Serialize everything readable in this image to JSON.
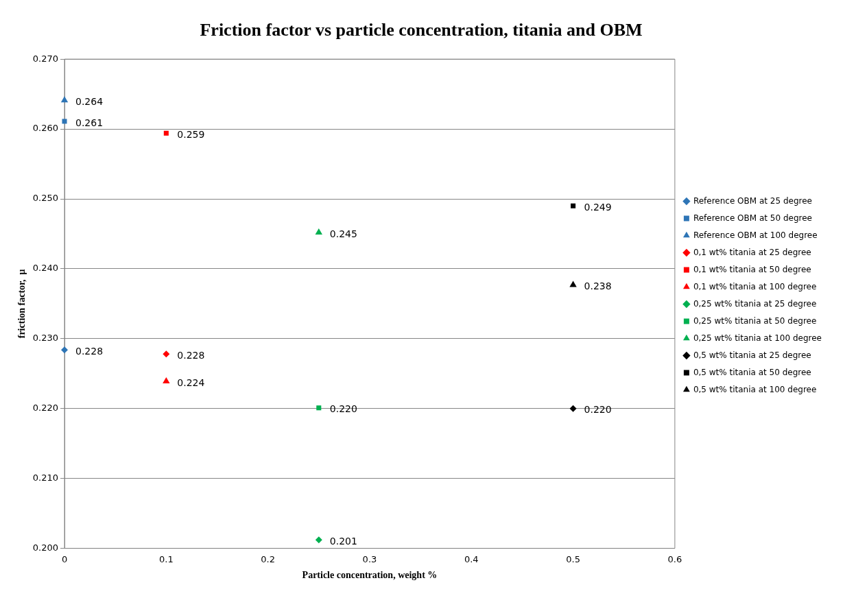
{
  "chart_data": {
    "type": "scatter",
    "title": "Friction factor vs particle concentration, titania and OBM",
    "xlabel": "Particle concentration, weight %",
    "ylabel": "friction factor,  μ",
    "xlim": [
      0,
      0.6
    ],
    "xticks": [
      0,
      0.1,
      0.2,
      0.3,
      0.4,
      0.5,
      0.6
    ],
    "ylim": [
      0.2,
      0.27
    ],
    "yticks": [
      {
        "value": 0.2,
        "label": "0.200"
      },
      {
        "value": 0.21,
        "label": "0.210"
      },
      {
        "value": 0.22,
        "label": "0.220"
      },
      {
        "value": 0.23,
        "label": "0.230"
      },
      {
        "value": 0.24,
        "label": "0.240"
      },
      {
        "value": 0.25,
        "label": "0.250"
      },
      {
        "value": 0.26,
        "label": "0.260"
      },
      {
        "value": 0.27,
        "label": "0.270"
      }
    ],
    "grid": "y",
    "legend": "right",
    "series": [
      {
        "name": "Reference OBM at 25 degree",
        "color": "#2e75b6",
        "marker": "diamond",
        "x": [
          0
        ],
        "values": [
          0.2284
        ],
        "value_labels": [
          "0.228"
        ]
      },
      {
        "name": "Reference OBM at 50 degree",
        "color": "#2e75b6",
        "marker": "square",
        "x": [
          0
        ],
        "values": [
          0.2611
        ],
        "value_labels": [
          "0.261"
        ]
      },
      {
        "name": "Reference OBM at 100 degree",
        "color": "#2e75b6",
        "marker": "triangle",
        "x": [
          0
        ],
        "values": [
          0.2641
        ],
        "value_labels": [
          "0.264"
        ]
      },
      {
        "name": "0,1 wt% titania at 25 degree",
        "color": "#ff0000",
        "marker": "diamond",
        "x": [
          0.1
        ],
        "values": [
          0.2278
        ],
        "value_labels": [
          "0.228"
        ]
      },
      {
        "name": "0,1 wt% titania at 50 degree",
        "color": "#ff0000",
        "marker": "square",
        "x": [
          0.1
        ],
        "values": [
          0.2594
        ],
        "value_labels": [
          "0.259"
        ]
      },
      {
        "name": "0,1 wt% titania at 100 degree",
        "color": "#ff0000",
        "marker": "triangle",
        "x": [
          0.1
        ],
        "values": [
          0.2239
        ],
        "value_labels": [
          "0.224"
        ]
      },
      {
        "name": "0,25 wt% titania at 25 degree",
        "color": "#00b050",
        "marker": "diamond",
        "x": [
          0.25
        ],
        "values": [
          0.2012
        ],
        "value_labels": [
          "0.201"
        ]
      },
      {
        "name": "0,25 wt% titania at 50 degree",
        "color": "#00b050",
        "marker": "square",
        "x": [
          0.25
        ],
        "values": [
          0.2201
        ],
        "value_labels": [
          "0.220"
        ]
      },
      {
        "name": "0,25 wt% titania at 100 degree",
        "color": "#00b050",
        "marker": "triangle",
        "x": [
          0.25
        ],
        "values": [
          0.2452
        ],
        "value_labels": [
          "0.245"
        ]
      },
      {
        "name": "0,5 wt% titania at 25 degree",
        "color": "#000000",
        "marker": "diamond",
        "x": [
          0.5
        ],
        "values": [
          0.22
        ],
        "value_labels": [
          "0.220"
        ]
      },
      {
        "name": "0,5 wt% titania at 50 degree",
        "color": "#000000",
        "marker": "square",
        "x": [
          0.5
        ],
        "values": [
          0.249
        ],
        "value_labels": [
          "0.249"
        ]
      },
      {
        "name": "0,5 wt% titania at 100 degree",
        "color": "#000000",
        "marker": "triangle",
        "x": [
          0.5
        ],
        "values": [
          0.2377
        ],
        "value_labels": [
          "0.238"
        ]
      }
    ]
  }
}
